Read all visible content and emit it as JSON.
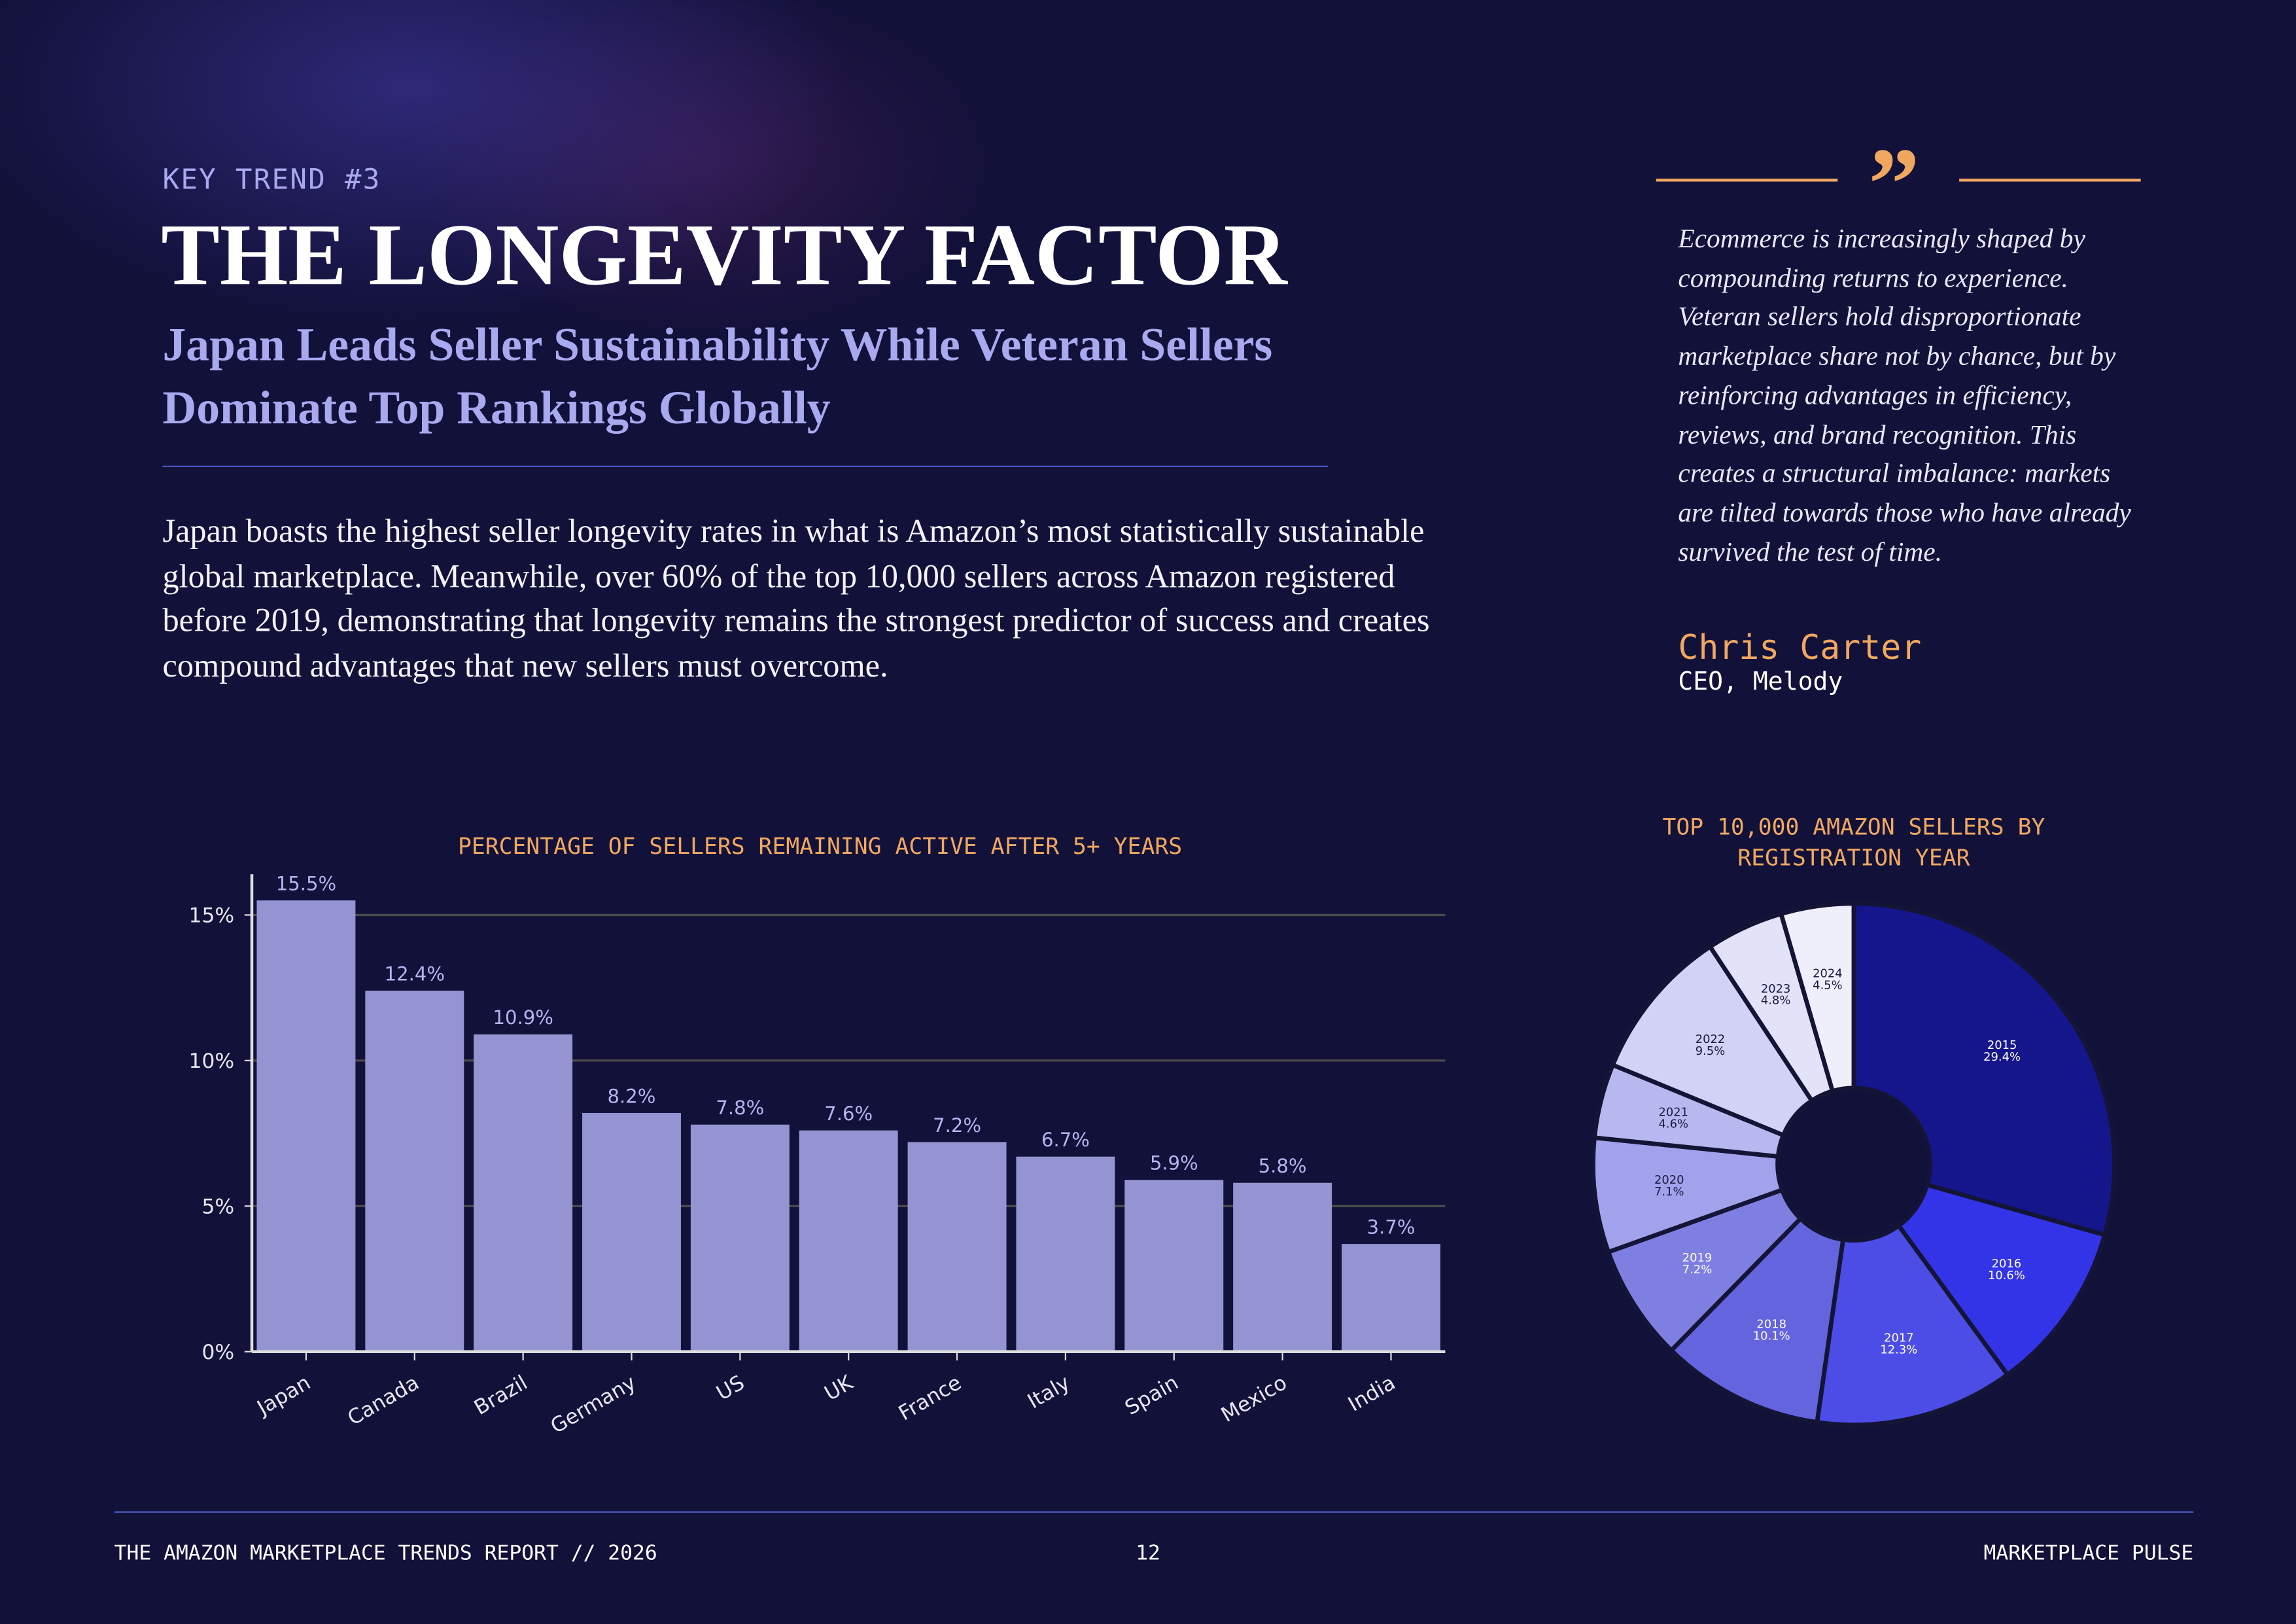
{
  "header": {
    "kicker": "KEY TREND #3",
    "title": "THE LONGEVITY FACTOR",
    "subtitle": "Japan Leads Seller Sustainability While Veteran Sellers Dominate Top Rankings Globally",
    "body": "Japan boasts the highest seller longevity rates in what is Amazon’s most statistically sustainable global marketplace. Meanwhile, over 60% of the top 10,000 sellers across Amazon registered before 2019, demonstrating that longevity remains the strongest predictor of success and creates compound advantages that new sellers must overcome."
  },
  "quote": {
    "text": "Ecommerce is increasingly shaped by compounding returns to experience. Veteran sellers hold disproportionate marketplace share not by chance, but by reinforcing advantages in efficiency, reviews, and brand recognition. This creates a structural imbalance: markets are tilted towards those who have already survived the test of time.",
    "author": "Chris Carter",
    "role": "CEO, Melody"
  },
  "chart_data": [
    {
      "type": "bar",
      "title": "PERCENTAGE OF SELLERS REMAINING ACTIVE AFTER 5+ YEARS",
      "categories": [
        "Japan",
        "Canada",
        "Brazil",
        "Germany",
        "US",
        "UK",
        "France",
        "Italy",
        "Spain",
        "Mexico",
        "India"
      ],
      "values": [
        15.5,
        12.4,
        10.9,
        8.2,
        7.8,
        7.6,
        7.2,
        6.7,
        5.9,
        5.8,
        3.7
      ],
      "value_labels": [
        "15.5%",
        "12.4%",
        "10.9%",
        "8.2%",
        "7.8%",
        "7.6%",
        "7.2%",
        "6.7%",
        "5.9%",
        "5.8%",
        "3.7%"
      ],
      "color": "#9494d2",
      "ylim": [
        0,
        16.4
      ],
      "yticks": [
        {
          "value": 0,
          "label": "0%"
        },
        {
          "value": 5,
          "label": "5%"
        },
        {
          "value": 10,
          "label": "10%"
        },
        {
          "value": 15,
          "label": "15%"
        }
      ],
      "grid": true
    },
    {
      "type": "pie",
      "title": "TOP 10,000 AMAZON SELLERS BY REGISTRATION YEAR",
      "categories": [
        "2015",
        "2016",
        "2017",
        "2018",
        "2019",
        "2020",
        "2021",
        "2022",
        "2023",
        "2024"
      ],
      "values": [
        29.4,
        10.6,
        12.3,
        10.1,
        7.2,
        7.1,
        4.6,
        9.5,
        4.8,
        4.5
      ],
      "value_labels": [
        "29.4%",
        "10.6%",
        "12.3%",
        "10.1%",
        "7.2%",
        "7.1%",
        "4.6%",
        "9.5%",
        "4.8%",
        "4.5%"
      ],
      "colors": [
        "#15158c",
        "#3333e8",
        "#4c4ce6",
        "#6464de",
        "#7f7fe2",
        "#a2a2ec",
        "#b8b8f0",
        "#d2d2f6",
        "#e2e2f9",
        "#efeffb"
      ]
    }
  ],
  "footer": {
    "left": "THE AMAZON MARKETPLACE TRENDS REPORT // 2026",
    "page": "12",
    "right": "MARKETPLACE PULSE"
  }
}
